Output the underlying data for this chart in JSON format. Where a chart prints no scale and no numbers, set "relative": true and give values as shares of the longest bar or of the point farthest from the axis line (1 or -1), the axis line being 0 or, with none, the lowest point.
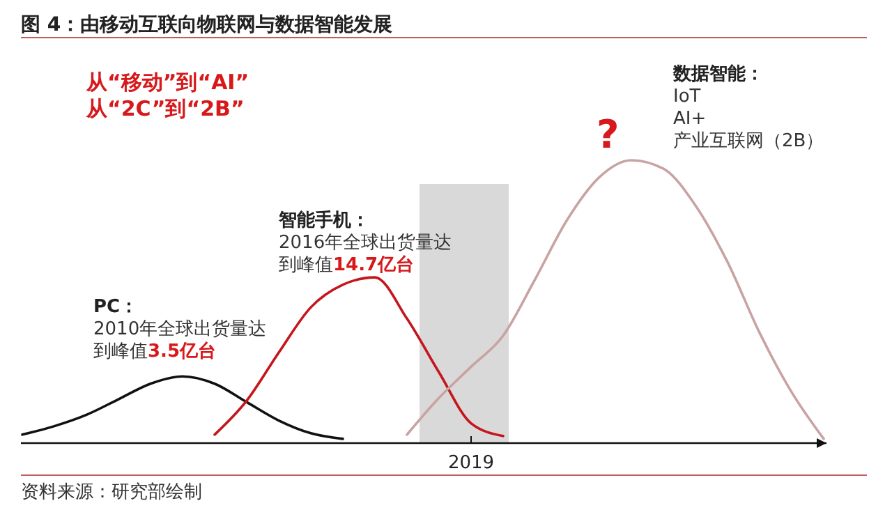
{
  "chart_data": {
    "type": "line",
    "relative": true,
    "title": "图 4：由移动互联向物联网与数据智能发展",
    "categories": [
      null,
      null,
      null,
      null,
      null,
      null,
      null,
      null,
      null,
      null,
      null,
      null,
      null,
      null,
      null,
      null,
      null,
      null,
      null,
      null,
      null,
      null,
      null,
      null,
      null,
      null
    ],
    "marker": "none",
    "line_style": "solid",
    "series": [
      {
        "color": "#111111",
        "values": [
          0.03,
          0.06,
          0.1,
          0.155,
          0.21,
          0.236,
          0.21,
          0.145,
          0.08,
          0.035,
          0.015,
          null,
          null,
          null,
          null,
          null,
          null,
          null,
          null,
          null,
          null,
          null,
          null,
          null,
          null,
          null
        ]
      },
      {
        "color": "#c4161c",
        "values": [
          null,
          null,
          null,
          null,
          null,
          null,
          0.03,
          0.15,
          0.32,
          0.48,
          0.56,
          0.586,
          0.44,
          0.25,
          0.07,
          0.025,
          null,
          null,
          null,
          null,
          null,
          null,
          null,
          null,
          null,
          null
        ]
      },
      {
        "color": "#c9a3a3",
        "values": [
          null,
          null,
          null,
          null,
          null,
          null,
          null,
          null,
          null,
          null,
          null,
          null,
          0.03,
          0.16,
          0.27,
          0.38,
          0.58,
          0.79,
          0.94,
          1.0,
          0.97,
          0.84,
          0.64,
          0.39,
          0.18,
          0.015
        ]
      }
    ],
    "annotations": [
      "从“移动”到“AI”",
      "从“2C”到“2B”",
      "PC：",
      "2010年全球出货量达",
      "到峰值",
      "3.5亿台",
      "智能手机：",
      "2016年全球出货量达",
      "到峰值",
      "14.7亿台",
      "?",
      "数据智能：",
      "IoT",
      "AI+",
      "产业互联网（2B）",
      "资料来源：研究部绘制",
      "2019"
    ]
  }
}
